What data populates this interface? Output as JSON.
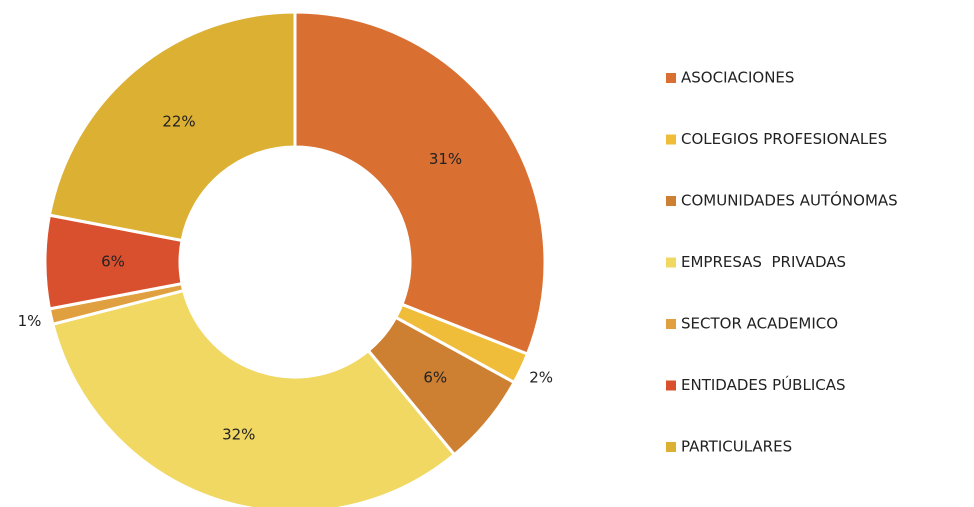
{
  "chart_data": {
    "type": "pie",
    "categories": [
      "ASOCIACIONES",
      "COLEGIOS PROFESIONALES",
      "COMUNIDADES AUTÓNOMAS",
      "EMPRESAS  PRIVADAS",
      "SECTOR ACADEMICO",
      "ENTIDADES PÚBLICAS",
      "PARTICULARES"
    ],
    "values": [
      31,
      2,
      6,
      32,
      1,
      6,
      22
    ],
    "value_labels": [
      "31%",
      "2%",
      "6%",
      "32%",
      "1%",
      "6%",
      "22%"
    ],
    "colors": [
      "#d97032",
      "#f0bd3a",
      "#cd7f32",
      "#f0d862",
      "#e0a040",
      "#d9502f",
      "#dcb033"
    ],
    "legend": "right"
  }
}
